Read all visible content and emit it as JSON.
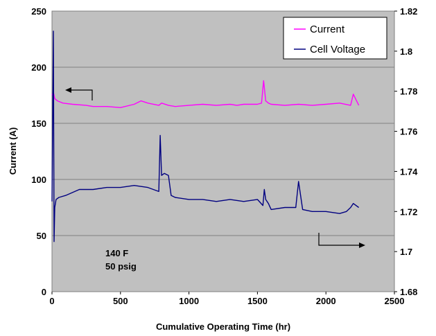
{
  "chart_data": {
    "type": "line",
    "title": "",
    "xlabel": "Cumulative Operating Time (hr)",
    "ylabel": "Current (A)",
    "y2label": "",
    "xlim": [
      0,
      2500
    ],
    "ylim": [
      0,
      250
    ],
    "y2lim": [
      1.68,
      1.82
    ],
    "x_ticks": [
      "0",
      "500",
      "1000",
      "1500",
      "2000",
      "2500"
    ],
    "y_ticks": [
      "0",
      "50",
      "100",
      "150",
      "200",
      "250"
    ],
    "y2_ticks": [
      "1.68",
      "1.7",
      "1.72",
      "1.74",
      "1.76",
      "1.78",
      "1.8",
      "1.82"
    ],
    "grid": true,
    "legend_position": "top-right",
    "plot_background": "#c0c0c0",
    "series": [
      {
        "name": "Current",
        "axis": "left",
        "color": "#ff00ff",
        "x": [
          0,
          10,
          20,
          40,
          80,
          150,
          250,
          300,
          400,
          500,
          600,
          650,
          700,
          780,
          800,
          850,
          900,
          1000,
          1100,
          1200,
          1300,
          1350,
          1400,
          1500,
          1530,
          1545,
          1560,
          1580,
          1600,
          1700,
          1800,
          1900,
          2000,
          2100,
          2180,
          2200,
          2240
        ],
        "y": [
          175,
          178,
          172,
          170,
          168,
          167,
          166,
          165,
          165,
          164,
          167,
          170,
          168,
          166,
          168,
          166,
          165,
          166,
          167,
          166,
          167,
          166,
          167,
          167,
          168,
          188,
          170,
          168,
          167,
          166,
          167,
          166,
          167,
          168,
          166,
          176,
          166
        ]
      },
      {
        "name": "Cell Voltage",
        "axis": "right",
        "color": "#000080",
        "x": [
          0,
          10,
          15,
          20,
          30,
          50,
          100,
          200,
          300,
          400,
          500,
          600,
          700,
          780,
          790,
          800,
          820,
          850,
          870,
          900,
          1000,
          1100,
          1200,
          1300,
          1400,
          1500,
          1540,
          1550,
          1560,
          1580,
          1600,
          1700,
          1780,
          1800,
          1830,
          1900,
          2000,
          2100,
          2150,
          2180,
          2200,
          2240
        ],
        "y": [
          1.725,
          1.81,
          1.705,
          1.722,
          1.726,
          1.727,
          1.728,
          1.731,
          1.731,
          1.732,
          1.732,
          1.733,
          1.732,
          1.73,
          1.758,
          1.738,
          1.739,
          1.738,
          1.728,
          1.727,
          1.726,
          1.726,
          1.725,
          1.726,
          1.725,
          1.726,
          1.723,
          1.731,
          1.726,
          1.724,
          1.721,
          1.722,
          1.722,
          1.735,
          1.721,
          1.72,
          1.72,
          1.719,
          1.72,
          1.722,
          1.724,
          1.722
        ]
      }
    ],
    "annotations": {
      "conditions_line1": "140 F",
      "conditions_line2": "50 psig"
    }
  }
}
